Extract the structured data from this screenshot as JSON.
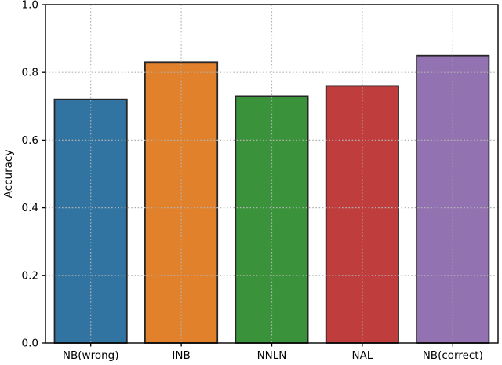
{
  "chart_data": {
    "type": "bar",
    "title": "",
    "xlabel": "",
    "ylabel": "Accuracy",
    "categories": [
      "NB(wrong)",
      "INB",
      "NNLN",
      "NAL",
      "NB(correct)"
    ],
    "values": [
      0.72,
      0.83,
      0.73,
      0.76,
      0.85
    ],
    "bar_colors": [
      "#3274a1",
      "#e1812c",
      "#3a923a",
      "#c03d3e",
      "#9372b2"
    ],
    "edge_color": "#262626",
    "ylim": [
      0.0,
      1.0
    ],
    "yticks": [
      0.0,
      0.2,
      0.4,
      0.6,
      0.8,
      1.0
    ],
    "ytick_labels": [
      "0.0",
      "0.2",
      "0.4",
      "0.6",
      "0.8",
      "1.0"
    ],
    "grid": true,
    "grid_axes": "both",
    "grid_style": "dotted",
    "grid_color": "#b3b3b3",
    "spine_color": "#000000",
    "legend": "none"
  }
}
